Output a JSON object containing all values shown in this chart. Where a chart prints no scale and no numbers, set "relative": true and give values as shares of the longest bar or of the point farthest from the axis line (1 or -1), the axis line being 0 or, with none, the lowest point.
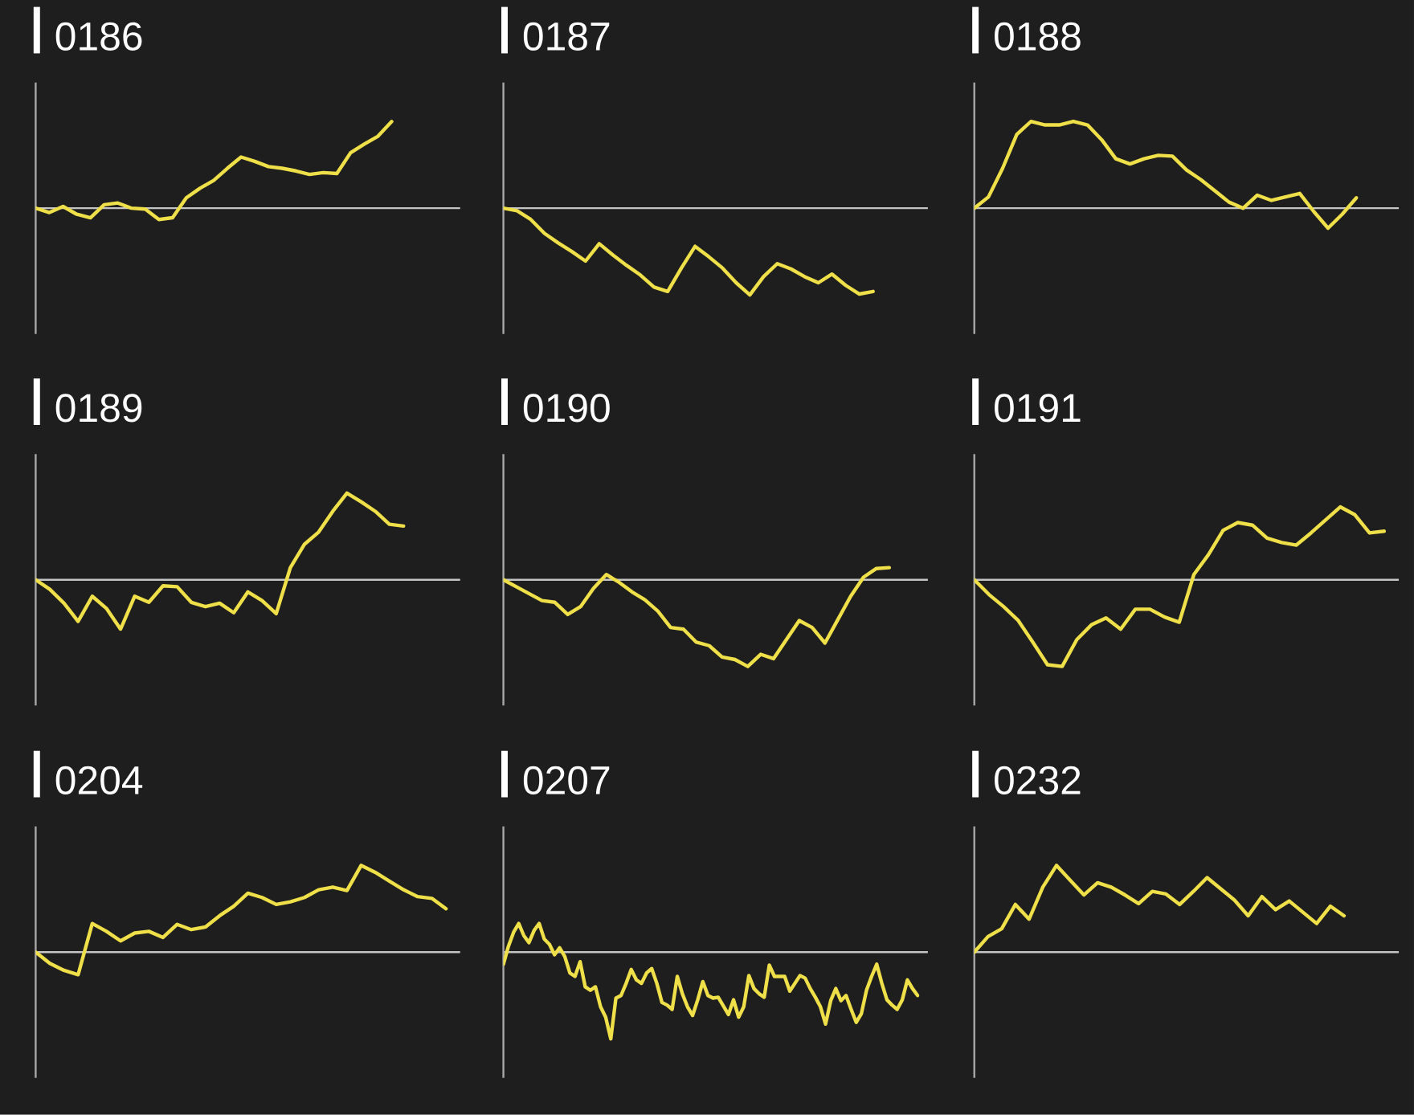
{
  "chart_data": [
    {
      "type": "line",
      "title": "0186",
      "relative": true,
      "color": "#efe04a",
      "categories": [
        null,
        null,
        null,
        null,
        null,
        null,
        null,
        null,
        null,
        null,
        null,
        null,
        null,
        null,
        null,
        null,
        null,
        null,
        null,
        null,
        null,
        null,
        null,
        null,
        null,
        null,
        null,
        null,
        null,
        null,
        null,
        null
      ],
      "values": [
        0,
        -0.05,
        0.02,
        -0.07,
        -0.11,
        0.04,
        0.06,
        0,
        -0.01,
        -0.13,
        -0.11,
        0.12,
        0.23,
        0.32,
        0.46,
        0.59,
        0.54,
        0.48,
        0.46,
        0.43,
        0.39,
        0.41,
        0.4,
        0.64,
        0.74,
        0.83,
        1,
        null,
        null,
        null,
        null,
        null
      ]
    },
    {
      "type": "line",
      "title": "0187",
      "relative": true,
      "color": "#efe04a",
      "categories": [
        null,
        null,
        null,
        null,
        null,
        null,
        null,
        null,
        null,
        null,
        null,
        null,
        null,
        null,
        null,
        null,
        null,
        null,
        null,
        null,
        null,
        null,
        null,
        null,
        null,
        null,
        null,
        null,
        null,
        null,
        null,
        null
      ],
      "values": [
        0,
        -0.03,
        -0.13,
        -0.29,
        -0.4,
        -0.5,
        -0.61,
        -0.41,
        -0.54,
        -0.66,
        -0.77,
        -0.91,
        -0.96,
        -0.69,
        -0.44,
        -0.56,
        -0.69,
        -0.86,
        -1,
        -0.79,
        -0.64,
        -0.7,
        -0.79,
        -0.86,
        -0.76,
        -0.89,
        -0.99,
        -0.96,
        null,
        null,
        null,
        null
      ]
    },
    {
      "type": "line",
      "title": "0188",
      "relative": true,
      "color": "#efe04a",
      "categories": [
        null,
        null,
        null,
        null,
        null,
        null,
        null,
        null,
        null,
        null,
        null,
        null,
        null,
        null,
        null,
        null,
        null,
        null,
        null,
        null,
        null,
        null,
        null,
        null,
        null,
        null,
        null,
        null,
        null,
        null,
        null
      ],
      "values": [
        0,
        0.13,
        0.46,
        0.85,
        1,
        0.96,
        0.96,
        1,
        0.96,
        0.79,
        0.57,
        0.51,
        0.57,
        0.61,
        0.6,
        0.44,
        0.33,
        0.2,
        0.07,
        0,
        0.15,
        0.09,
        0.13,
        0.17,
        -0.04,
        -0.23,
        -0.07,
        0.12,
        null,
        null,
        null
      ]
    },
    {
      "type": "line",
      "title": "0189",
      "relative": true,
      "color": "#efe04a",
      "categories": [
        null,
        null,
        null,
        null,
        null,
        null,
        null,
        null,
        null,
        null,
        null,
        null,
        null,
        null,
        null,
        null,
        null,
        null,
        null,
        null,
        null,
        null,
        null,
        null,
        null,
        null,
        null,
        null,
        null,
        null,
        null
      ],
      "values": [
        0,
        -0.11,
        -0.27,
        -0.48,
        -0.19,
        -0.33,
        -0.57,
        -0.19,
        -0.26,
        -0.07,
        -0.08,
        -0.26,
        -0.31,
        -0.27,
        -0.38,
        -0.14,
        -0.24,
        -0.39,
        0.14,
        0.41,
        0.55,
        0.79,
        1,
        0.9,
        0.79,
        0.64,
        0.62,
        null,
        null,
        null,
        null
      ]
    },
    {
      "type": "line",
      "title": "0190",
      "relative": true,
      "color": "#efe04a",
      "categories": [
        null,
        null,
        null,
        null,
        null,
        null,
        null,
        null,
        null,
        null,
        null,
        null,
        null,
        null,
        null,
        null,
        null,
        null,
        null,
        null,
        null,
        null,
        null,
        null,
        null,
        null,
        null,
        null,
        null,
        null,
        null,
        null,
        null,
        null
      ],
      "values": [
        0,
        -0.08,
        -0.16,
        -0.24,
        -0.26,
        -0.4,
        -0.31,
        -0.1,
        0.06,
        -0.03,
        -0.14,
        -0.23,
        -0.36,
        -0.55,
        -0.57,
        -0.72,
        -0.76,
        -0.89,
        -0.92,
        -1,
        -0.86,
        -0.91,
        -0.69,
        -0.47,
        -0.55,
        -0.73,
        -0.46,
        -0.19,
        0.03,
        0.13,
        0.14,
        null,
        null,
        null
      ]
    },
    {
      "type": "line",
      "title": "0191",
      "relative": true,
      "color": "#efe04a",
      "categories": [
        null,
        null,
        null,
        null,
        null,
        null,
        null,
        null,
        null,
        null,
        null,
        null,
        null,
        null,
        null,
        null,
        null,
        null,
        null,
        null,
        null,
        null,
        null,
        null,
        null,
        null,
        null,
        null,
        null,
        null
      ],
      "values": [
        0,
        -0.17,
        -0.31,
        -0.47,
        -0.72,
        -0.98,
        -1,
        -0.69,
        -0.52,
        -0.44,
        -0.57,
        -0.34,
        -0.34,
        -0.43,
        -0.49,
        0.06,
        0.29,
        0.57,
        0.66,
        0.63,
        0.48,
        0.43,
        0.4,
        0.54,
        0.69,
        0.84,
        0.75,
        0.54,
        0.56,
        null
      ]
    },
    {
      "type": "line",
      "title": "0204",
      "relative": true,
      "color": "#efe04a",
      "categories": [
        null,
        null,
        null,
        null,
        null,
        null,
        null,
        null,
        null,
        null,
        null,
        null,
        null,
        null,
        null,
        null,
        null,
        null,
        null,
        null,
        null,
        null,
        null,
        null,
        null,
        null,
        null,
        null,
        null,
        null,
        null
      ],
      "values": [
        0,
        -0.13,
        -0.21,
        -0.26,
        0.33,
        0.24,
        0.13,
        0.22,
        0.24,
        0.17,
        0.32,
        0.26,
        0.29,
        0.42,
        0.53,
        0.68,
        0.63,
        0.55,
        0.58,
        0.63,
        0.72,
        0.75,
        0.71,
        1,
        0.92,
        0.82,
        0.72,
        0.64,
        0.62,
        0.5,
        null
      ]
    },
    {
      "type": "line",
      "title": "0207",
      "relative": true,
      "color": "#efe04a",
      "categories": [
        null,
        null,
        null,
        null,
        null,
        null,
        null,
        null,
        null,
        null,
        null,
        null,
        null,
        null,
        null,
        null,
        null,
        null,
        null,
        null,
        null,
        null,
        null,
        null,
        null,
        null,
        null,
        null,
        null,
        null,
        null,
        null,
        null,
        null,
        null,
        null,
        null,
        null,
        null,
        null,
        null,
        null,
        null,
        null,
        null,
        null,
        null,
        null,
        null,
        null,
        null,
        null,
        null,
        null,
        null,
        null,
        null,
        null,
        null,
        null,
        null,
        null,
        null,
        null,
        null,
        null,
        null,
        null,
        null,
        null,
        null,
        null,
        null,
        null,
        null,
        null,
        null,
        null,
        null,
        null,
        null,
        null,
        null,
        null
      ],
      "values": [
        -0.14,
        0.07,
        0.23,
        0.33,
        0.19,
        0.11,
        0.25,
        0.33,
        0.15,
        0.09,
        -0.03,
        0.05,
        -0.05,
        -0.24,
        -0.28,
        -0.11,
        -0.4,
        -0.44,
        -0.4,
        -0.63,
        -0.75,
        -1,
        -0.53,
        -0.5,
        -0.36,
        -0.2,
        -0.32,
        -0.36,
        -0.24,
        -0.19,
        -0.36,
        -0.58,
        -0.61,
        -0.66,
        -0.28,
        -0.48,
        -0.63,
        -0.73,
        -0.55,
        -0.34,
        -0.5,
        -0.53,
        -0.52,
        -0.62,
        -0.72,
        -0.55,
        -0.75,
        -0.63,
        -0.27,
        -0.42,
        -0.48,
        -0.52,
        -0.15,
        -0.28,
        -0.28,
        -0.28,
        -0.45,
        -0.36,
        -0.27,
        -0.3,
        -0.42,
        -0.52,
        -0.63,
        -0.83,
        -0.56,
        -0.42,
        -0.56,
        -0.5,
        -0.66,
        -0.81,
        -0.71,
        -0.44,
        -0.28,
        -0.14,
        -0.36,
        -0.55,
        -0.61,
        -0.66,
        -0.55,
        -0.32,
        -0.42,
        -0.5,
        null,
        null
      ]
    },
    {
      "type": "line",
      "title": "0232",
      "relative": true,
      "color": "#efe04a",
      "categories": [
        null,
        null,
        null,
        null,
        null,
        null,
        null,
        null,
        null,
        null,
        null,
        null,
        null,
        null,
        null,
        null,
        null,
        null,
        null,
        null,
        null,
        null,
        null,
        null,
        null,
        null,
        null,
        null,
        null,
        null,
        null,
        null
      ],
      "values": [
        0,
        0.18,
        0.27,
        0.55,
        0.38,
        0.75,
        1,
        0.83,
        0.66,
        0.8,
        0.75,
        0.66,
        0.56,
        0.7,
        0.67,
        0.55,
        0.7,
        0.86,
        0.73,
        0.6,
        0.42,
        0.64,
        0.49,
        0.59,
        0.46,
        0.33,
        0.53,
        0.42,
        null,
        null,
        null,
        null
      ]
    }
  ]
}
